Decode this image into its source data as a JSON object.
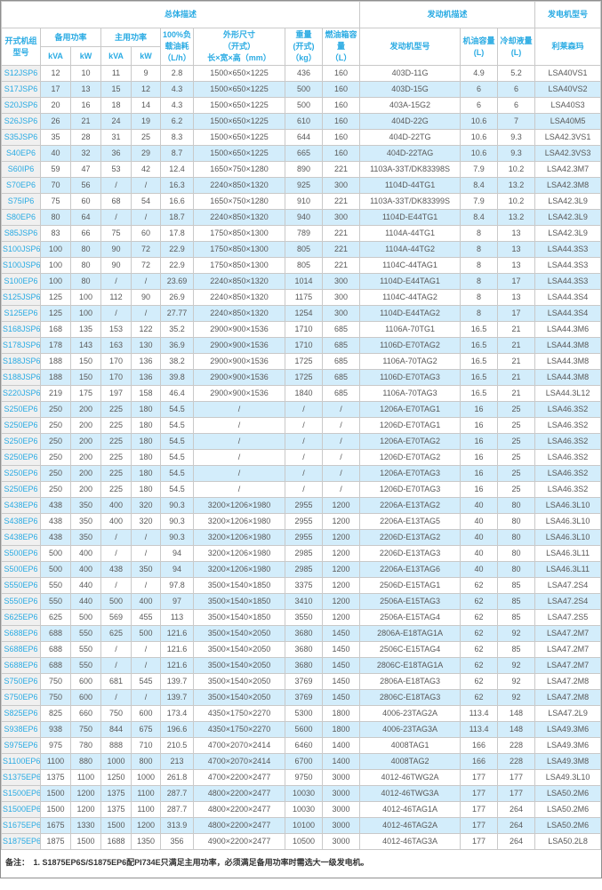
{
  "colors": {
    "accent": "#2aabe3",
    "stripe": "#d3edfb",
    "model_col_bg": "#f0f0f0",
    "border": "#c9c9c9",
    "body_text": "#595959"
  },
  "table": {
    "top_headers": [
      {
        "label": "总体描述",
        "colspan": 9
      },
      {
        "label": "发动机描述",
        "colspan": 3
      },
      {
        "label": "发电机型号",
        "colspan": 1
      }
    ],
    "headers": {
      "model": "开式机组\n型号",
      "standby_power": "备用功率",
      "prime_power": "主用功率",
      "kva": "kVA",
      "kw": "kW",
      "fuel_100": "100%负\n载油耗\n（L/h）",
      "dimensions": "外形尺寸\n（开式）\n长×宽×高（mm）",
      "weight": "重量\n(开式)\n（kg）",
      "tank": "燃油箱容\n量\n（L）",
      "engine_model": "发动机型号",
      "oil": "机油容量\n(L)",
      "coolant": "冷却液量\n(L)",
      "alternator": "利莱森玛"
    },
    "column_keys": [
      "model",
      "standby_kva",
      "standby_kw",
      "prime_kva",
      "prime_kw",
      "fuel_100",
      "dimensions",
      "weight",
      "tank",
      "engine_model",
      "oil",
      "coolant",
      "alternator"
    ],
    "rows": [
      [
        "S12JSP6",
        "12",
        "10",
        "11",
        "9",
        "2.8",
        "1500×650×1225",
        "436",
        "160",
        "403D-11G",
        "4.9",
        "5.2",
        "LSA40VS1"
      ],
      [
        "S17JSP6",
        "17",
        "13",
        "15",
        "12",
        "4.3",
        "1500×650×1225",
        "500",
        "160",
        "403D-15G",
        "6",
        "6",
        "LSA40VS2"
      ],
      [
        "S20JSP6",
        "20",
        "16",
        "18",
        "14",
        "4.3",
        "1500×650×1225",
        "500",
        "160",
        "403A-15G2",
        "6",
        "6",
        "LSA40S3"
      ],
      [
        "S26JSP6",
        "26",
        "21",
        "24",
        "19",
        "6.2",
        "1500×650×1225",
        "610",
        "160",
        "404D-22G",
        "10.6",
        "7",
        "LSA40M5"
      ],
      [
        "S35JSP6",
        "35",
        "28",
        "31",
        "25",
        "8.3",
        "1500×650×1225",
        "644",
        "160",
        "404D-22TG",
        "10.6",
        "9.3",
        "LSA42.3VS1"
      ],
      [
        "S40EP6",
        "40",
        "32",
        "36",
        "29",
        "8.7",
        "1500×650×1225",
        "665",
        "160",
        "404D-22TAG",
        "10.6",
        "9.3",
        "LSA42.3VS3"
      ],
      [
        "S60IP6",
        "59",
        "47",
        "53",
        "42",
        "12.4",
        "1650×750×1280",
        "890",
        "221",
        "1103A-33T/DK83398S",
        "7.9",
        "10.2",
        "LSA42.3M7"
      ],
      [
        "S70EP6",
        "70",
        "56",
        "/",
        "/",
        "16.3",
        "2240×850×1320",
        "925",
        "300",
        "1104D-44TG1",
        "8.4",
        "13.2",
        "LSA42.3M8"
      ],
      [
        "S75IP6",
        "75",
        "60",
        "68",
        "54",
        "16.6",
        "1650×750×1280",
        "910",
        "221",
        "1103A-33T/DK83399S",
        "7.9",
        "10.2",
        "LSA42.3L9"
      ],
      [
        "S80EP6",
        "80",
        "64",
        "/",
        "/",
        "18.7",
        "2240×850×1320",
        "940",
        "300",
        "1104D-E44TG1",
        "8.4",
        "13.2",
        "LSA42.3L9"
      ],
      [
        "S85JSP6",
        "83",
        "66",
        "75",
        "60",
        "17.8",
        "1750×850×1300",
        "789",
        "221",
        "1104A-44TG1",
        "8",
        "13",
        "LSA42.3L9"
      ],
      [
        "S100JSP6",
        "100",
        "80",
        "90",
        "72",
        "22.9",
        "1750×850×1300",
        "805",
        "221",
        "1104A-44TG2",
        "8",
        "13",
        "LSA44.3S3"
      ],
      [
        "S100JSP6",
        "100",
        "80",
        "90",
        "72",
        "22.9",
        "1750×850×1300",
        "805",
        "221",
        "1104C-44TAG1",
        "8",
        "13",
        "LSA44.3S3"
      ],
      [
        "S100EP6",
        "100",
        "80",
        "/",
        "/",
        "23.69",
        "2240×850×1320",
        "1014",
        "300",
        "1104D-E44TAG1",
        "8",
        "17",
        "LSA44.3S3"
      ],
      [
        "S125JSP6",
        "125",
        "100",
        "112",
        "90",
        "26.9",
        "2240×850×1320",
        "1175",
        "300",
        "1104C-44TAG2",
        "8",
        "13",
        "LSA44.3S4"
      ],
      [
        "S125EP6",
        "125",
        "100",
        "/",
        "/",
        "27.77",
        "2240×850×1320",
        "1254",
        "300",
        "1104D-E44TAG2",
        "8",
        "17",
        "LSA44.3S4"
      ],
      [
        "S168JSP6",
        "168",
        "135",
        "153",
        "122",
        "35.2",
        "2900×900×1536",
        "1710",
        "685",
        "1106A-70TG1",
        "16.5",
        "21",
        "LSA44.3M6"
      ],
      [
        "S178JSP6",
        "178",
        "143",
        "163",
        "130",
        "36.9",
        "2900×900×1536",
        "1710",
        "685",
        "1106D-E70TAG2",
        "16.5",
        "21",
        "LSA44.3M8"
      ],
      [
        "S188JSP6",
        "188",
        "150",
        "170",
        "136",
        "38.2",
        "2900×900×1536",
        "1725",
        "685",
        "1106A-70TAG2",
        "16.5",
        "21",
        "LSA44.3M8"
      ],
      [
        "S188JSP6",
        "188",
        "150",
        "170",
        "136",
        "39.8",
        "2900×900×1536",
        "1725",
        "685",
        "1106D-E70TAG3",
        "16.5",
        "21",
        "LSA44.3M8"
      ],
      [
        "S220JSP6",
        "219",
        "175",
        "197",
        "158",
        "46.4",
        "2900×900×1536",
        "1840",
        "685",
        "1106A-70TAG3",
        "16.5",
        "21",
        "LSA44.3L12"
      ],
      [
        "S250EP6",
        "250",
        "200",
        "225",
        "180",
        "54.5",
        "/",
        "/",
        "/",
        "1206A-E70TAG1",
        "16",
        "25",
        "LSA46.3S2"
      ],
      [
        "S250EP6",
        "250",
        "200",
        "225",
        "180",
        "54.5",
        "/",
        "/",
        "/",
        "1206D-E70TAG1",
        "16",
        "25",
        "LSA46.3S2"
      ],
      [
        "S250EP6",
        "250",
        "200",
        "225",
        "180",
        "54.5",
        "/",
        "/",
        "/",
        "1206A-E70TAG2",
        "16",
        "25",
        "LSA46.3S2"
      ],
      [
        "S250EP6",
        "250",
        "200",
        "225",
        "180",
        "54.5",
        "/",
        "/",
        "/",
        "1206D-E70TAG2",
        "16",
        "25",
        "LSA46.3S2"
      ],
      [
        "S250EP6",
        "250",
        "200",
        "225",
        "180",
        "54.5",
        "/",
        "/",
        "/",
        "1206A-E70TAG3",
        "16",
        "25",
        "LSA46.3S2"
      ],
      [
        "S250EP6",
        "250",
        "200",
        "225",
        "180",
        "54.5",
        "/",
        "/",
        "/",
        "1206D-E70TAG3",
        "16",
        "25",
        "LSA46.3S2"
      ],
      [
        "S438EP6",
        "438",
        "350",
        "400",
        "320",
        "90.3",
        "3200×1206×1980",
        "2955",
        "1200",
        "2206A-E13TAG2",
        "40",
        "80",
        "LSA46.3L10"
      ],
      [
        "S438EP6",
        "438",
        "350",
        "400",
        "320",
        "90.3",
        "3200×1206×1980",
        "2955",
        "1200",
        "2206A-E13TAG5",
        "40",
        "80",
        "LSA46.3L10"
      ],
      [
        "S438EP6",
        "438",
        "350",
        "/",
        "/",
        "90.3",
        "3200×1206×1980",
        "2955",
        "1200",
        "2206D-E13TAG2",
        "40",
        "80",
        "LSA46.3L10"
      ],
      [
        "S500EP6",
        "500",
        "400",
        "/",
        "/",
        "94",
        "3200×1206×1980",
        "2985",
        "1200",
        "2206D-E13TAG3",
        "40",
        "80",
        "LSA46.3L11"
      ],
      [
        "S500EP6",
        "500",
        "400",
        "438",
        "350",
        "94",
        "3200×1206×1980",
        "2985",
        "1200",
        "2206A-E13TAG6",
        "40",
        "80",
        "LSA46.3L11"
      ],
      [
        "S550EP6",
        "550",
        "440",
        "/",
        "/",
        "97.8",
        "3500×1540×1850",
        "3375",
        "1200",
        "2506D-E15TAG1",
        "62",
        "85",
        "LSA47.2S4"
      ],
      [
        "S550EP6",
        "550",
        "440",
        "500",
        "400",
        "97",
        "3500×1540×1850",
        "3410",
        "1200",
        "2506A-E15TAG3",
        "62",
        "85",
        "LSA47.2S4"
      ],
      [
        "S625EP6",
        "625",
        "500",
        "569",
        "455",
        "113",
        "3500×1540×1850",
        "3550",
        "1200",
        "2506A-E15TAG4",
        "62",
        "85",
        "LSA47.2S5"
      ],
      [
        "S688EP6",
        "688",
        "550",
        "625",
        "500",
        "121.6",
        "3500×1540×2050",
        "3680",
        "1450",
        "2806A-E18TAG1A",
        "62",
        "92",
        "LSA47.2M7"
      ],
      [
        "S688EP6",
        "688",
        "550",
        "/",
        "/",
        "121.6",
        "3500×1540×2050",
        "3680",
        "1450",
        "2506C-E15TAG4",
        "62",
        "85",
        "LSA47.2M7"
      ],
      [
        "S688EP6",
        "688",
        "550",
        "/",
        "/",
        "121.6",
        "3500×1540×2050",
        "3680",
        "1450",
        "2806C-E18TAG1A",
        "62",
        "92",
        "LSA47.2M7"
      ],
      [
        "S750EP6",
        "750",
        "600",
        "681",
        "545",
        "139.7",
        "3500×1540×2050",
        "3769",
        "1450",
        "2806A-E18TAG3",
        "62",
        "92",
        "LSA47.2M8"
      ],
      [
        "S750EP6",
        "750",
        "600",
        "/",
        "/",
        "139.7",
        "3500×1540×2050",
        "3769",
        "1450",
        "2806C-E18TAG3",
        "62",
        "92",
        "LSA47.2M8"
      ],
      [
        "S825EP6",
        "825",
        "660",
        "750",
        "600",
        "173.4",
        "4350×1750×2270",
        "5300",
        "1800",
        "4006-23TAG2A",
        "113.4",
        "148",
        "LSA47.2L9"
      ],
      [
        "S938EP6",
        "938",
        "750",
        "844",
        "675",
        "196.6",
        "4350×1750×2270",
        "5600",
        "1800",
        "4006-23TAG3A",
        "113.4",
        "148",
        "LSA49.3M6"
      ],
      [
        "S975EP6",
        "975",
        "780",
        "888",
        "710",
        "210.5",
        "4700×2070×2414",
        "6460",
        "1400",
        "4008TAG1",
        "166",
        "228",
        "LSA49.3M6"
      ],
      [
        "S1100EP6",
        "1100",
        "880",
        "1000",
        "800",
        "213",
        "4700×2070×2414",
        "6700",
        "1400",
        "4008TAG2",
        "166",
        "228",
        "LSA49.3M8"
      ],
      [
        "S1375EP6",
        "1375",
        "1100",
        "1250",
        "1000",
        "261.8",
        "4700×2200×2477",
        "9750",
        "3000",
        "4012-46TWG2A",
        "177",
        "177",
        "LSA49.3L10"
      ],
      [
        "S1500EP6",
        "1500",
        "1200",
        "1375",
        "1100",
        "287.7",
        "4800×2200×2477",
        "10030",
        "3000",
        "4012-46TWG3A",
        "177",
        "177",
        "LSA50.2M6"
      ],
      [
        "S1500EP6",
        "1500",
        "1200",
        "1375",
        "1100",
        "287.7",
        "4800×2200×2477",
        "10030",
        "3000",
        "4012-46TAG1A",
        "177",
        "264",
        "LSA50.2M6"
      ],
      [
        "S1675EP6",
        "1675",
        "1330",
        "1500",
        "1200",
        "313.9",
        "4800×2200×2477",
        "10100",
        "3000",
        "4012-46TAG2A",
        "177",
        "264",
        "LSA50.2M6"
      ],
      [
        "S1875EP6",
        "1875",
        "1500",
        "1688",
        "1350",
        "356",
        "4900×2200×2477",
        "10500",
        "3000",
        "4012-46TAG3A",
        "177",
        "264",
        "LSA50.2L8"
      ]
    ]
  },
  "note": {
    "label": "备注：",
    "text": "1. S1875EP6S/S1875EP6配PI734E只满足主用功率，必须满足备用功率时需选大一级发电机。"
  }
}
